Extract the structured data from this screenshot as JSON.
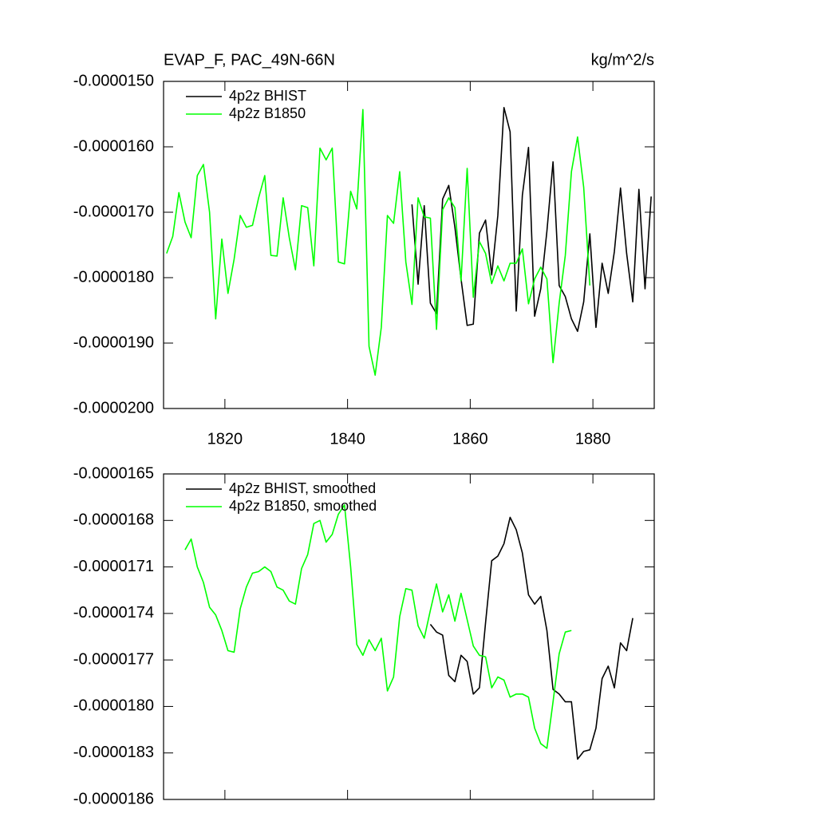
{
  "chart_data": [
    {
      "type": "line",
      "title": "EVAP_F, PAC_49N-66N",
      "units": "kg/m^2/s",
      "legend": "top-left",
      "show_xtick_labels": true,
      "xlim": [
        1810,
        1890
      ],
      "xticks": [
        1820,
        1840,
        1860,
        1880
      ],
      "ylim": [
        -2e-05,
        -1.5e-05
      ],
      "yticks": [
        {
          "value": -1.5e-05,
          "label": "-0.0000150"
        },
        {
          "value": -1.6e-05,
          "label": "-0.0000160"
        },
        {
          "value": -1.7e-05,
          "label": "-0.0000170"
        },
        {
          "value": -1.8e-05,
          "label": "-0.0000180"
        },
        {
          "value": -1.9e-05,
          "label": "-0.0000190"
        },
        {
          "value": -2e-05,
          "label": "-0.0000200"
        }
      ],
      "series": [
        {
          "name": "4p2z BHIST",
          "color": "#000000",
          "x": [
            1850.5,
            1851.5,
            1852.5,
            1853.5,
            1854.5,
            1855.5,
            1856.5,
            1857.5,
            1858.5,
            1859.5,
            1860.5,
            1861.5,
            1862.5,
            1863.5,
            1864.5,
            1865.5,
            1866.5,
            1867.5,
            1868.5,
            1869.5,
            1870.5,
            1871.5,
            1872.5,
            1873.5,
            1874.5,
            1875.5,
            1876.5,
            1877.5,
            1878.5,
            1879.5,
            1880.5,
            1881.5,
            1882.5,
            1883.5,
            1884.5,
            1885.5,
            1886.5,
            1887.5,
            1888.5,
            1889.5
          ],
          "values": [
            -1.688e-05,
            -1.81e-05,
            -1.69e-05,
            -1.839e-05,
            -1.855e-05,
            -1.68e-05,
            -1.659e-05,
            -1.723e-05,
            -1.802e-05,
            -1.873e-05,
            -1.871e-05,
            -1.732e-05,
            -1.712e-05,
            -1.796e-05,
            -1.705e-05,
            -1.54e-05,
            -1.577e-05,
            -1.851e-05,
            -1.674e-05,
            -1.601e-05,
            -1.859e-05,
            -1.817e-05,
            -1.729e-05,
            -1.623e-05,
            -1.812e-05,
            -1.829e-05,
            -1.863e-05,
            -1.882e-05,
            -1.837e-05,
            -1.733e-05,
            -1.876e-05,
            -1.778e-05,
            -1.824e-05,
            -1.76e-05,
            -1.663e-05,
            -1.763e-05,
            -1.837e-05,
            -1.665e-05,
            -1.817e-05,
            -1.676e-05
          ]
        },
        {
          "name": "4p2z B1850",
          "color": "#00ff00",
          "x": [
            1810.5,
            1811.5,
            1812.5,
            1813.5,
            1814.5,
            1815.5,
            1816.5,
            1817.5,
            1818.5,
            1819.5,
            1820.5,
            1821.5,
            1822.5,
            1823.5,
            1824.5,
            1825.5,
            1826.5,
            1827.5,
            1828.5,
            1829.5,
            1830.5,
            1831.5,
            1832.5,
            1833.5,
            1834.5,
            1835.5,
            1836.5,
            1837.5,
            1838.5,
            1839.5,
            1840.5,
            1841.5,
            1842.5,
            1843.5,
            1844.5,
            1845.5,
            1846.5,
            1847.5,
            1848.5,
            1849.5,
            1850.5,
            1851.5,
            1852.5,
            1853.5,
            1854.5,
            1855.5,
            1856.5,
            1857.5,
            1858.5,
            1859.5,
            1860.5,
            1861.5,
            1862.5,
            1863.5,
            1864.5,
            1865.5,
            1866.5,
            1867.5,
            1868.5,
            1869.5,
            1870.5,
            1871.5,
            1872.5,
            1873.5,
            1874.5,
            1875.5,
            1876.5,
            1877.5,
            1878.5,
            1879.5
          ],
          "values": [
            -1.763e-05,
            -1.737e-05,
            -1.67e-05,
            -1.715e-05,
            -1.739e-05,
            -1.644e-05,
            -1.627e-05,
            -1.7e-05,
            -1.863e-05,
            -1.741e-05,
            -1.824e-05,
            -1.772e-05,
            -1.705e-05,
            -1.723e-05,
            -1.72e-05,
            -1.678e-05,
            -1.644e-05,
            -1.766e-05,
            -1.767e-05,
            -1.678e-05,
            -1.739e-05,
            -1.788e-05,
            -1.69e-05,
            -1.693e-05,
            -1.782e-05,
            -1.602e-05,
            -1.62e-05,
            -1.602e-05,
            -1.776e-05,
            -1.779e-05,
            -1.668e-05,
            -1.695e-05,
            -1.543e-05,
            -1.905e-05,
            -1.949e-05,
            -1.876e-05,
            -1.705e-05,
            -1.717e-05,
            -1.638e-05,
            -1.776e-05,
            -1.841e-05,
            -1.678e-05,
            -1.707e-05,
            -1.709e-05,
            -1.879e-05,
            -1.696e-05,
            -1.678e-05,
            -1.693e-05,
            -1.805e-05,
            -1.633e-05,
            -1.83e-05,
            -1.745e-05,
            -1.763e-05,
            -1.809e-05,
            -1.782e-05,
            -1.805e-05,
            -1.778e-05,
            -1.778e-05,
            -1.756e-05,
            -1.84e-05,
            -1.802e-05,
            -1.784e-05,
            -1.802e-05,
            -1.93e-05,
            -1.839e-05,
            -1.766e-05,
            -1.638e-05,
            -1.585e-05,
            -1.662e-05,
            -1.812e-05
          ]
        }
      ]
    },
    {
      "type": "line",
      "legend": "top-left",
      "show_xtick_labels": false,
      "xlim": [
        1810,
        1890
      ],
      "xticks": [
        1820,
        1840,
        1860,
        1880
      ],
      "ylim": [
        -1.86e-05,
        -1.65e-05
      ],
      "yticks": [
        {
          "value": -1.65e-05,
          "label": "-0.0000165"
        },
        {
          "value": -1.68e-05,
          "label": "-0.0000168"
        },
        {
          "value": -1.71e-05,
          "label": "-0.0000171"
        },
        {
          "value": -1.74e-05,
          "label": "-0.0000174"
        },
        {
          "value": -1.77e-05,
          "label": "-0.0000177"
        },
        {
          "value": -1.8e-05,
          "label": "-0.0000180"
        },
        {
          "value": -1.83e-05,
          "label": "-0.0000183"
        },
        {
          "value": -1.86e-05,
          "label": "-0.0000186"
        }
      ],
      "series": [
        {
          "name": "4p2z BHIST, smoothed",
          "color": "#000000",
          "x": [
            1853.5,
            1854.5,
            1855.5,
            1856.5,
            1857.5,
            1858.5,
            1859.5,
            1860.5,
            1861.5,
            1862.5,
            1863.5,
            1864.5,
            1865.5,
            1866.5,
            1867.5,
            1868.5,
            1869.5,
            1870.5,
            1871.5,
            1872.5,
            1873.5,
            1874.5,
            1875.5,
            1876.5,
            1877.5,
            1878.5,
            1879.5,
            1880.5,
            1881.5,
            1882.5,
            1883.5,
            1884.5,
            1885.5,
            1886.5
          ],
          "values": [
            -1.747e-05,
            -1.752e-05,
            -1.754e-05,
            -1.78e-05,
            -1.784e-05,
            -1.767e-05,
            -1.771e-05,
            -1.792e-05,
            -1.788e-05,
            -1.746e-05,
            -1.706e-05,
            -1.703e-05,
            -1.695e-05,
            -1.678e-05,
            -1.686e-05,
            -1.701e-05,
            -1.728e-05,
            -1.734e-05,
            -1.729e-05,
            -1.751e-05,
            -1.789e-05,
            -1.792e-05,
            -1.797e-05,
            -1.797e-05,
            -1.834e-05,
            -1.829e-05,
            -1.828e-05,
            -1.814e-05,
            -1.782e-05,
            -1.774e-05,
            -1.788e-05,
            -1.759e-05,
            -1.764e-05,
            -1.743e-05
          ]
        },
        {
          "name": "4p2z B1850, smoothed",
          "color": "#00ff00",
          "x": [
            1813.5,
            1814.5,
            1815.5,
            1816.5,
            1817.5,
            1818.5,
            1819.5,
            1820.5,
            1821.5,
            1822.5,
            1823.5,
            1824.5,
            1825.5,
            1826.5,
            1827.5,
            1828.5,
            1829.5,
            1830.5,
            1831.5,
            1832.5,
            1833.5,
            1834.5,
            1835.5,
            1836.5,
            1837.5,
            1838.5,
            1839.5,
            1840.5,
            1841.5,
            1842.5,
            1843.5,
            1844.5,
            1845.5,
            1846.5,
            1847.5,
            1848.5,
            1849.5,
            1850.5,
            1851.5,
            1852.5,
            1853.5,
            1854.5,
            1855.5,
            1856.5,
            1857.5,
            1858.5,
            1859.5,
            1860.5,
            1861.5,
            1862.5,
            1863.5,
            1864.5,
            1865.5,
            1866.5,
            1867.5,
            1868.5,
            1869.5,
            1870.5,
            1871.5,
            1872.5,
            1873.5,
            1874.5,
            1875.5,
            1876.5
          ],
          "values": [
            -1.699e-05,
            -1.692e-05,
            -1.71e-05,
            -1.72e-05,
            -1.736e-05,
            -1.741e-05,
            -1.751e-05,
            -1.764e-05,
            -1.765e-05,
            -1.737e-05,
            -1.723e-05,
            -1.714e-05,
            -1.713e-05,
            -1.71e-05,
            -1.713e-05,
            -1.723e-05,
            -1.725e-05,
            -1.732e-05,
            -1.734e-05,
            -1.711e-05,
            -1.702e-05,
            -1.682e-05,
            -1.68e-05,
            -1.694e-05,
            -1.689e-05,
            -1.676e-05,
            -1.67e-05,
            -1.71e-05,
            -1.76e-05,
            -1.767e-05,
            -1.757e-05,
            -1.764e-05,
            -1.756e-05,
            -1.79e-05,
            -1.781e-05,
            -1.742e-05,
            -1.724e-05,
            -1.725e-05,
            -1.748e-05,
            -1.756e-05,
            -1.738e-05,
            -1.721e-05,
            -1.739e-05,
            -1.728e-05,
            -1.745e-05,
            -1.727e-05,
            -1.744e-05,
            -1.761e-05,
            -1.767e-05,
            -1.768e-05,
            -1.788e-05,
            -1.781e-05,
            -1.783e-05,
            -1.794e-05,
            -1.792e-05,
            -1.792e-05,
            -1.794e-05,
            -1.814e-05,
            -1.824e-05,
            -1.827e-05,
            -1.797e-05,
            -1.766e-05,
            -1.752e-05,
            -1.751e-05
          ]
        }
      ]
    }
  ]
}
